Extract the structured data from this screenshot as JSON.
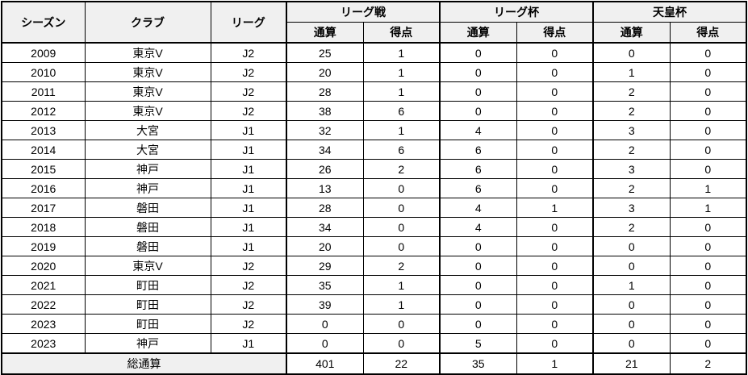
{
  "table": {
    "header": {
      "season": "シーズン",
      "club": "クラブ",
      "league": "リーグ",
      "groups": [
        {
          "label": "リーグ戦"
        },
        {
          "label": "リーグ杯"
        },
        {
          "label": "天皇杯"
        }
      ],
      "sub": {
        "apps": "通算",
        "goals": "得点"
      }
    },
    "rows": [
      {
        "season": "2009",
        "club": "東京V",
        "league": "J2",
        "stats": [
          "25",
          "1",
          "0",
          "0",
          "0",
          "0"
        ]
      },
      {
        "season": "2010",
        "club": "東京V",
        "league": "J2",
        "stats": [
          "20",
          "1",
          "0",
          "0",
          "1",
          "0"
        ]
      },
      {
        "season": "2011",
        "club": "東京V",
        "league": "J2",
        "stats": [
          "28",
          "1",
          "0",
          "0",
          "2",
          "0"
        ]
      },
      {
        "season": "2012",
        "club": "東京V",
        "league": "J2",
        "stats": [
          "38",
          "6",
          "0",
          "0",
          "2",
          "0"
        ]
      },
      {
        "season": "2013",
        "club": "大宮",
        "league": "J1",
        "stats": [
          "32",
          "1",
          "4",
          "0",
          "3",
          "0"
        ]
      },
      {
        "season": "2014",
        "club": "大宮",
        "league": "J1",
        "stats": [
          "34",
          "6",
          "6",
          "0",
          "2",
          "0"
        ]
      },
      {
        "season": "2015",
        "club": "神戸",
        "league": "J1",
        "stats": [
          "26",
          "2",
          "6",
          "0",
          "3",
          "0"
        ]
      },
      {
        "season": "2016",
        "club": "神戸",
        "league": "J1",
        "stats": [
          "13",
          "0",
          "6",
          "0",
          "2",
          "1"
        ]
      },
      {
        "season": "2017",
        "club": "磐田",
        "league": "J1",
        "stats": [
          "28",
          "0",
          "4",
          "1",
          "3",
          "1"
        ]
      },
      {
        "season": "2018",
        "club": "磐田",
        "league": "J1",
        "stats": [
          "34",
          "0",
          "4",
          "0",
          "2",
          "0"
        ]
      },
      {
        "season": "2019",
        "club": "磐田",
        "league": "J1",
        "stats": [
          "20",
          "0",
          "0",
          "0",
          "0",
          "0"
        ]
      },
      {
        "season": "2020",
        "club": "東京V",
        "league": "J2",
        "stats": [
          "29",
          "2",
          "0",
          "0",
          "0",
          "0"
        ]
      },
      {
        "season": "2021",
        "club": "町田",
        "league": "J2",
        "stats": [
          "35",
          "1",
          "0",
          "0",
          "1",
          "0"
        ]
      },
      {
        "season": "2022",
        "club": "町田",
        "league": "J2",
        "stats": [
          "39",
          "1",
          "0",
          "0",
          "0",
          "0"
        ]
      },
      {
        "season": "2023",
        "club": "町田",
        "league": "J2",
        "stats": [
          "0",
          "0",
          "0",
          "0",
          "0",
          "0"
        ]
      },
      {
        "season": "2023",
        "club": "神戸",
        "league": "J1",
        "stats": [
          "0",
          "0",
          "5",
          "0",
          "0",
          "0"
        ]
      }
    ],
    "total": {
      "label": "総通算",
      "stats": [
        "401",
        "22",
        "35",
        "1",
        "21",
        "2"
      ]
    }
  },
  "colors": {
    "header_bg": "#f0f0f0",
    "border": "#000000"
  }
}
